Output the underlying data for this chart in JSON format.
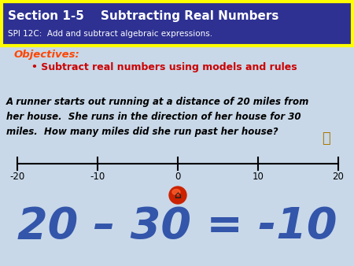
{
  "title_line1": "Section 1-5    Subtracting Real Numbers",
  "title_line2": "SPI 12C:  Add and subtract algebraic expressions.",
  "title_bg_color": "#2E3192",
  "title_border_color": "#FFFF00",
  "title_text_color": "#FFFFFF",
  "objectives_label": "Objectives:",
  "objectives_color": "#FF4500",
  "bullet_text": "• Subtract real numbers using models and rules",
  "bullet_color": "#CC0000",
  "body_text": "A runner starts out running at a distance of 20 miles from\nher house.  She runs in the direction of her house for 30\nmiles.  How many miles did she run past her house?",
  "body_text_color": "#000000",
  "number_line_ticks": [
    -20,
    -10,
    0,
    10,
    20
  ],
  "number_line_color": "#000000",
  "bg_color": "#C8D8E8",
  "equation": "20 – 30 = -10",
  "equation_color": "#3355AA",
  "equation_fontsize": 40,
  "house_color": "#CC2200",
  "house_inner_color": "#CC3300"
}
